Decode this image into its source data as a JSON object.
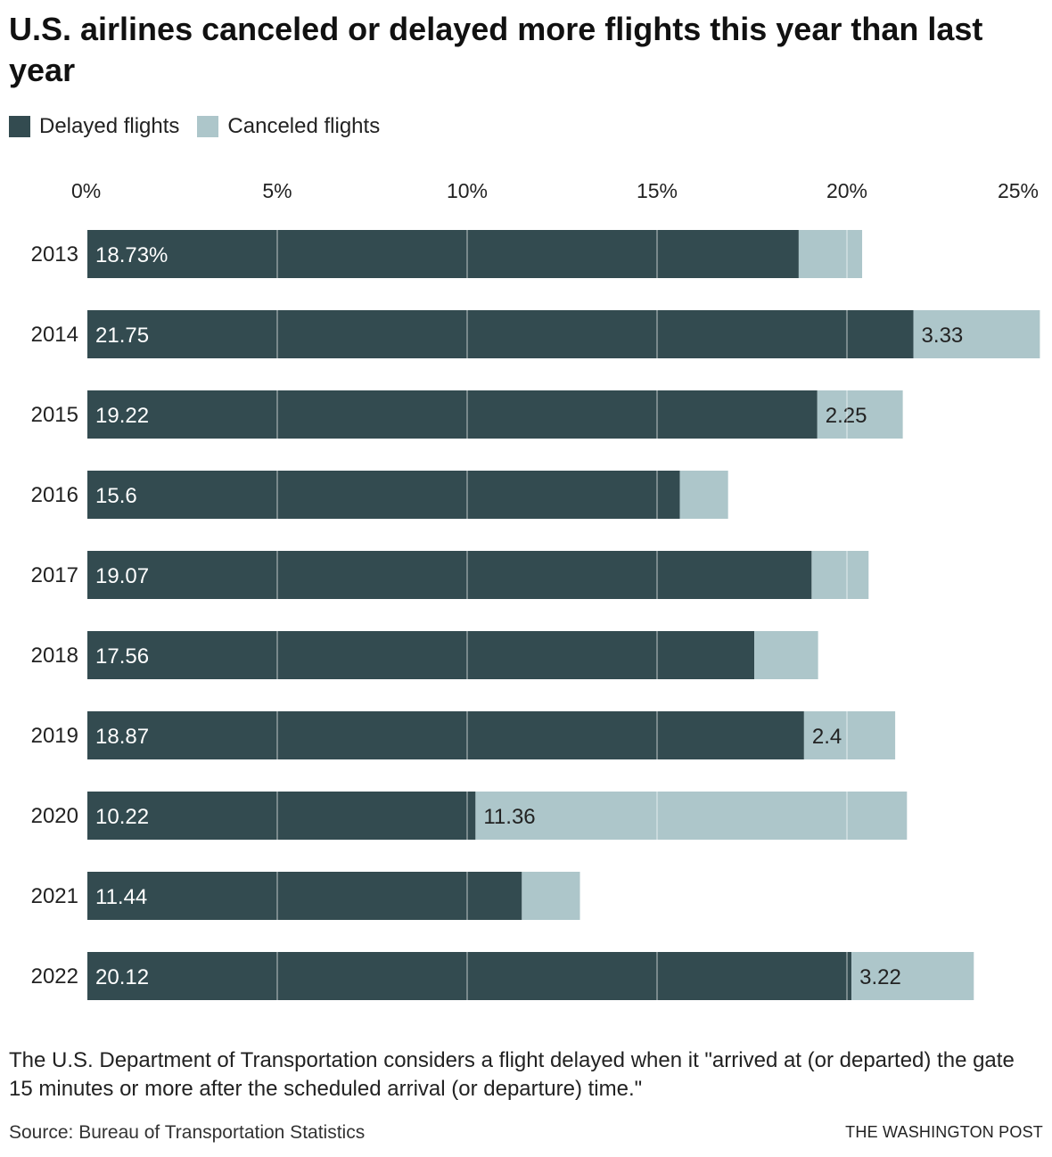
{
  "title": "U.S. airlines canceled or delayed more flights this year than last year",
  "legend": [
    {
      "label": "Delayed flights",
      "color": "#334b50"
    },
    {
      "label": "Canceled flights",
      "color": "#adc6ca"
    }
  ],
  "chart_data": {
    "type": "bar",
    "orientation": "horizontal",
    "stacked": true,
    "title": "U.S. airlines canceled or delayed more flights this year than last year",
    "xlabel": "",
    "ylabel": "",
    "xlim": [
      0,
      25
    ],
    "ticks": [
      0,
      5,
      10,
      15,
      20,
      25
    ],
    "tick_labels": [
      "0%",
      "5%",
      "10%",
      "15%",
      "20%",
      "25%"
    ],
    "grid": true,
    "categories": [
      "2013",
      "2014",
      "2015",
      "2016",
      "2017",
      "2018",
      "2019",
      "2020",
      "2021",
      "2022"
    ],
    "series": [
      {
        "name": "Delayed flights",
        "color": "#334b50",
        "text_color": "#ffffff",
        "values": [
          18.73,
          21.75,
          19.22,
          15.6,
          19.07,
          17.56,
          18.87,
          10.22,
          11.44,
          20.12
        ],
        "labels": [
          "18.73%",
          "21.75",
          "19.22",
          "15.6",
          "19.07",
          "17.56",
          "18.87",
          "10.22",
          "11.44",
          "20.12"
        ]
      },
      {
        "name": "Canceled flights",
        "color": "#adc6ca",
        "text_color": "#222222",
        "values": [
          1.67,
          3.33,
          2.25,
          1.27,
          1.5,
          1.68,
          2.4,
          11.36,
          1.53,
          3.22
        ],
        "labels": [
          "",
          "3.33",
          "2.25",
          "",
          "",
          "",
          "2.4",
          "11.36",
          "",
          "3.22"
        ]
      }
    ]
  },
  "note": "The U.S. Department of Transportation considers a flight delayed when it \"arrived at (or departed) the gate 15 minutes or more after the scheduled arrival (or departure) time.\"",
  "source": "Source: Bureau of Transportation Statistics",
  "brand": "THE WASHINGTON POST"
}
